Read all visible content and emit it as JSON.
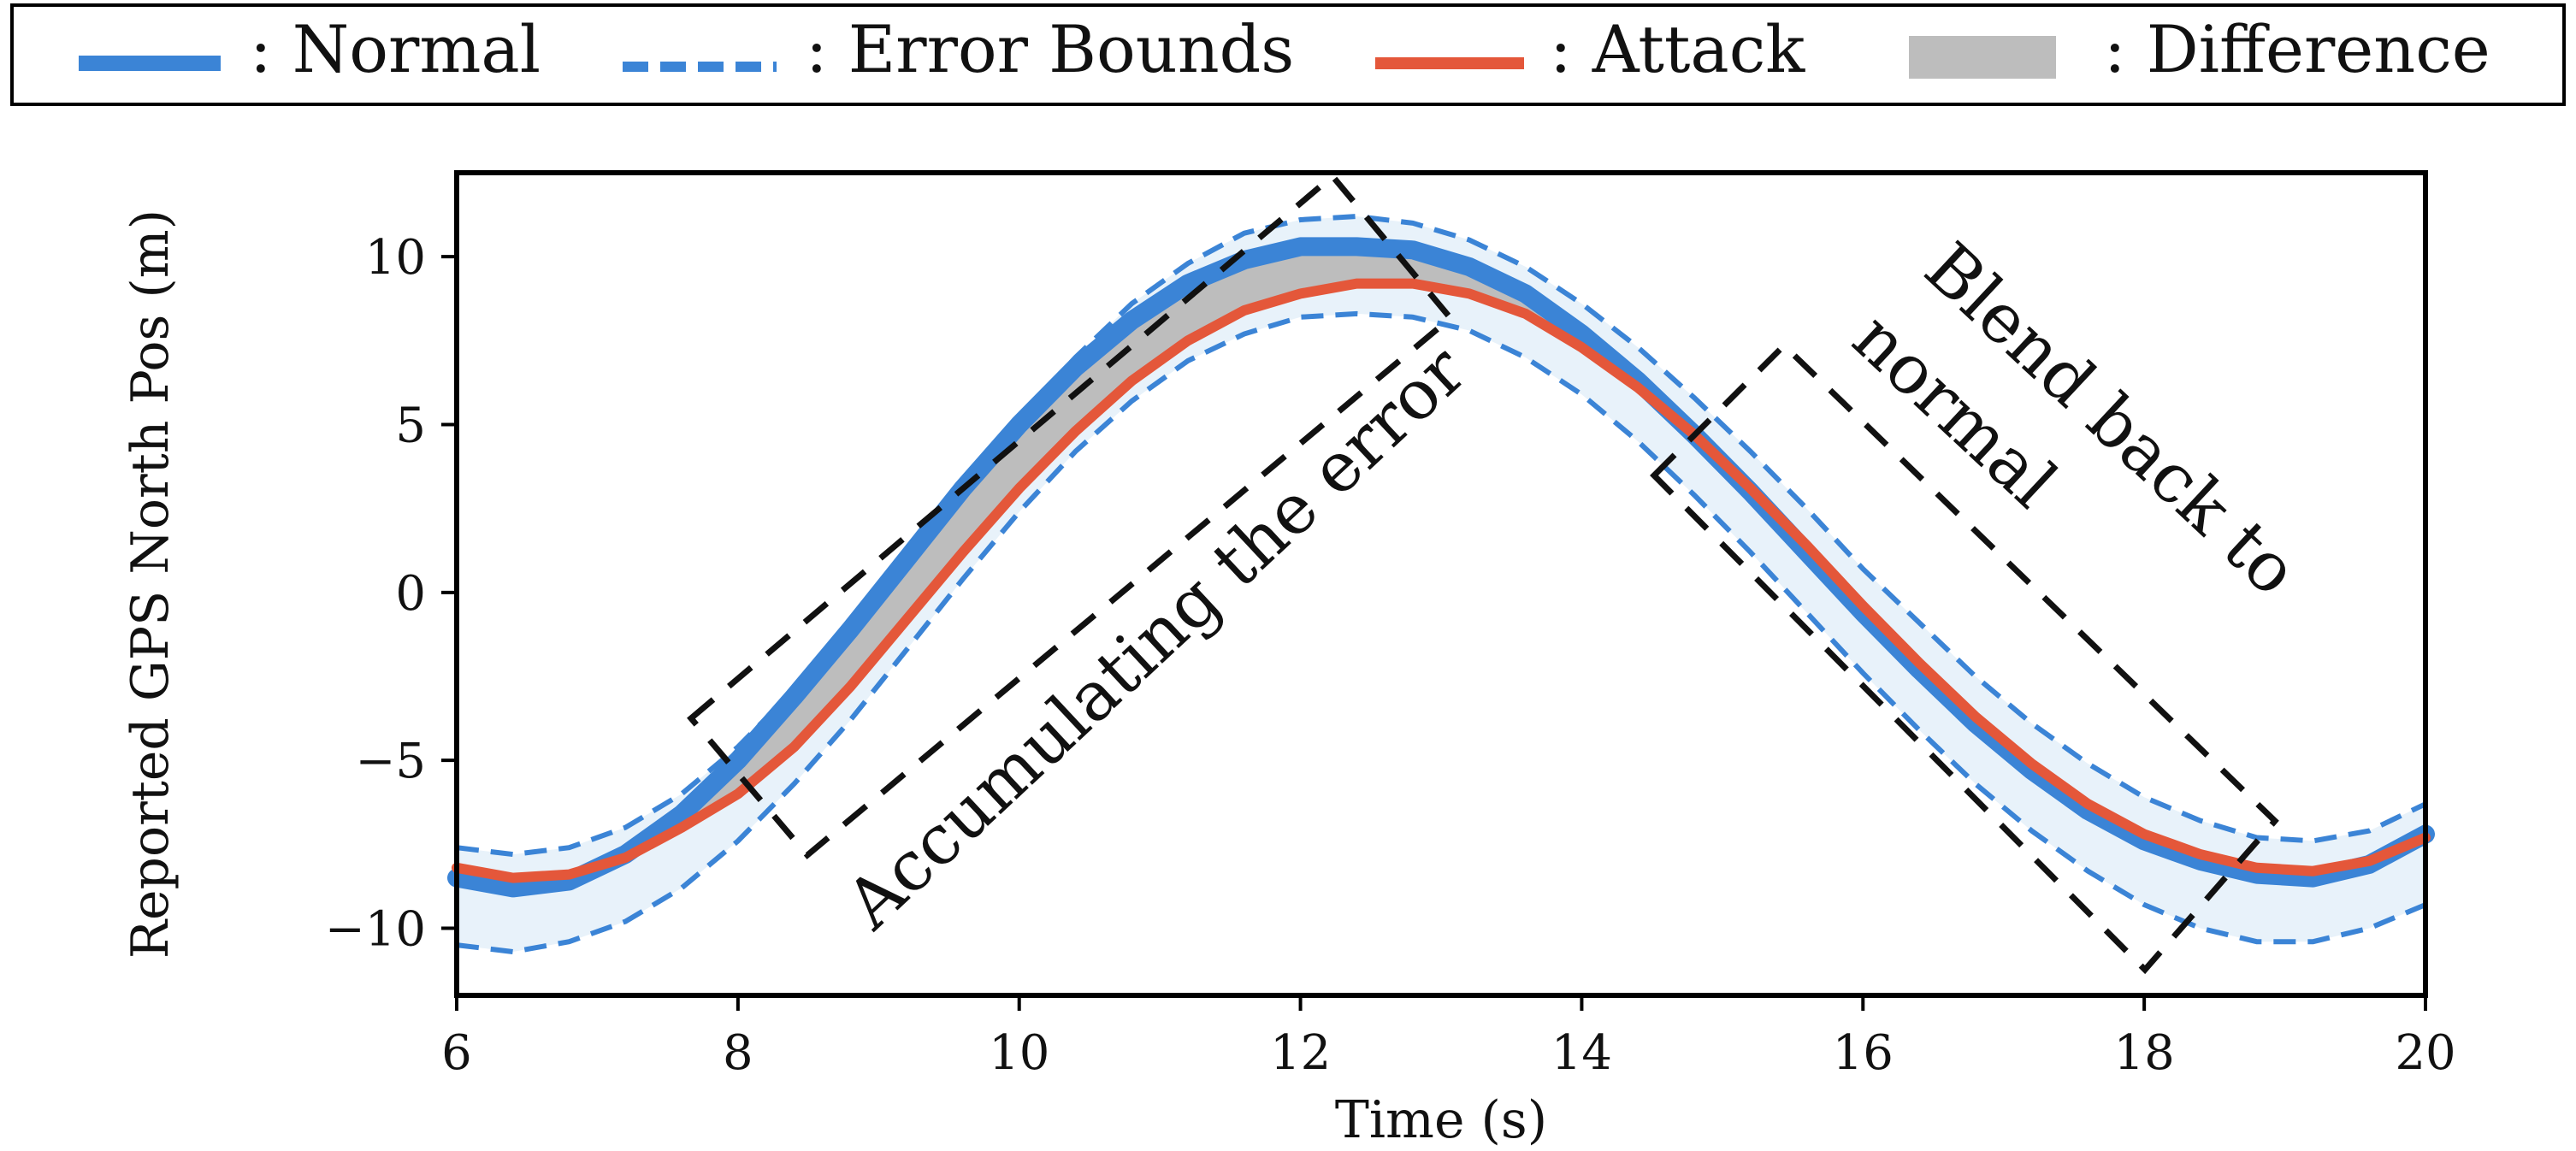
{
  "legend": {
    "normal": ": Normal",
    "error_bounds": ": Error Bounds",
    "attack": ": Attack",
    "difference": ": Difference"
  },
  "annotations": {
    "accumulate": "Accumulating the error",
    "blend_line1": "Blend back to",
    "blend_line2": "normal"
  },
  "colors": {
    "normal": "#3b84d6",
    "error_bounds": "#3b84d6",
    "band_fill": "#e8f2fa",
    "attack": "#e4573a",
    "difference": "#bdbdbd",
    "frame": "#000000"
  },
  "chart_data": {
    "type": "line",
    "title": "",
    "xlabel": "Time (s)",
    "ylabel": "Reported GPS North Pos (m)",
    "xlim": [
      6,
      20
    ],
    "ylim": [
      -12,
      12.5
    ],
    "xticks": [
      6,
      8,
      10,
      12,
      14,
      16,
      18,
      20
    ],
    "xtick_labels": [
      "6",
      "8",
      "10",
      "12",
      "14",
      "16",
      "18",
      "20"
    ],
    "yticks": [
      10,
      5,
      0,
      -5,
      -10
    ],
    "ytick_labels": [
      "10",
      "5",
      "0",
      "−5",
      "−10"
    ],
    "grid": false,
    "legend_position": "top, outside",
    "x": [
      6.0,
      6.4,
      6.8,
      7.2,
      7.6,
      8.0,
      8.4,
      8.8,
      9.2,
      9.6,
      10.0,
      10.4,
      10.8,
      11.2,
      11.6,
      12.0,
      12.4,
      12.8,
      13.2,
      13.6,
      14.0,
      14.4,
      14.8,
      15.2,
      15.6,
      16.0,
      16.4,
      16.8,
      17.2,
      17.6,
      18.0,
      18.4,
      18.8,
      19.2,
      19.6,
      20.0
    ],
    "series": [
      {
        "name": "Normal",
        "style": "solid-thick",
        "values": [
          -8.5,
          -8.8,
          -8.6,
          -7.8,
          -6.6,
          -5.0,
          -3.1,
          -1.1,
          1.0,
          3.1,
          5.0,
          6.7,
          8.1,
          9.2,
          9.9,
          10.3,
          10.3,
          10.2,
          9.7,
          8.9,
          7.7,
          6.3,
          4.7,
          3.0,
          1.2,
          -0.6,
          -2.3,
          -3.9,
          -5.3,
          -6.5,
          -7.4,
          -8.0,
          -8.4,
          -8.5,
          -8.1,
          -7.2
        ]
      },
      {
        "name": "Error Bounds (upper)",
        "style": "dashed",
        "values": [
          -7.6,
          -7.8,
          -7.6,
          -7.0,
          -6.0,
          -4.6,
          -2.9,
          -1.0,
          1.1,
          3.2,
          5.2,
          7.0,
          8.6,
          9.8,
          10.7,
          11.1,
          11.2,
          11.0,
          10.5,
          9.7,
          8.6,
          7.3,
          5.8,
          4.2,
          2.5,
          0.7,
          -0.9,
          -2.5,
          -3.9,
          -5.1,
          -6.1,
          -6.8,
          -7.3,
          -7.4,
          -7.1,
          -6.3
        ]
      },
      {
        "name": "Error Bounds (lower)",
        "style": "dashed",
        "values": [
          -10.5,
          -10.7,
          -10.4,
          -9.8,
          -8.8,
          -7.4,
          -5.7,
          -3.8,
          -1.7,
          0.4,
          2.4,
          4.2,
          5.7,
          6.9,
          7.7,
          8.2,
          8.3,
          8.2,
          7.8,
          7.0,
          5.9,
          4.5,
          2.9,
          1.2,
          -0.6,
          -2.4,
          -4.1,
          -5.7,
          -7.1,
          -8.3,
          -9.3,
          -10.0,
          -10.4,
          -10.4,
          -10.0,
          -9.3
        ]
      },
      {
        "name": "Attack",
        "style": "solid",
        "values": [
          -8.2,
          -8.5,
          -8.4,
          -7.9,
          -7.0,
          -6.0,
          -4.6,
          -2.8,
          -0.8,
          1.2,
          3.1,
          4.8,
          6.3,
          7.5,
          8.4,
          8.9,
          9.2,
          9.2,
          8.9,
          8.3,
          7.3,
          6.1,
          4.7,
          3.1,
          1.4,
          -0.4,
          -2.1,
          -3.7,
          -5.1,
          -6.3,
          -7.2,
          -7.8,
          -8.2,
          -8.3,
          -8.0,
          -7.3
        ]
      }
    ],
    "annotations": [
      "Accumulating the error",
      "Blend back to normal"
    ]
  }
}
